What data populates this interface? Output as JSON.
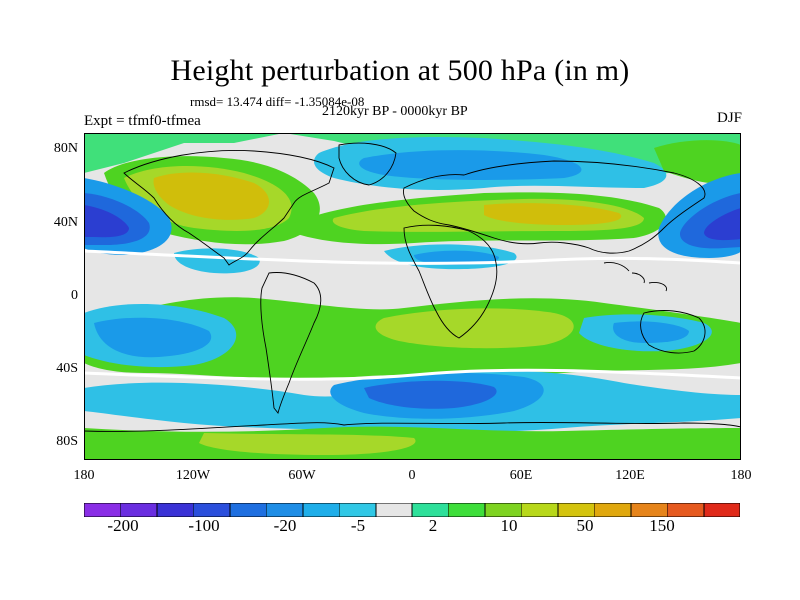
{
  "title": "Height perturbation at 500 hPa (in m)",
  "stats_line": "rmsd= 13.474 diff= -1.35084e-08",
  "experiment_line": "Expt = tfmf0-tfmea",
  "period_line": "2120kyr BP - 0000kyr BP",
  "season": "DJF",
  "map": {
    "y_ticks": [
      "80N",
      "40N",
      "0",
      "40S",
      "80S"
    ],
    "x_ticks": [
      "180",
      "120W",
      "60W",
      "0",
      "60E",
      "120E",
      "180"
    ],
    "fill_colors": {
      "neutral": "#e6e6e6",
      "pos_weak": "#40e07a",
      "pos_mid": "#4ed321",
      "pos_strong": "#a6d829",
      "pos_high": "#d0be0b",
      "neg_weak": "#2fc0e6",
      "neg_mid": "#1a9ae9",
      "neg_strong": "#1f68dc",
      "neg_high": "#2b3ed1"
    }
  },
  "legend": {
    "labels": [
      "-200",
      "-100",
      "-20",
      "-5",
      "2",
      "10",
      "50",
      "150"
    ],
    "colors": [
      "#8a2ee6",
      "#6a2ee0",
      "#3a32d6",
      "#2b4fdc",
      "#1f6fe0",
      "#1f8ee6",
      "#1faee9",
      "#30c8e6",
      "#e6e6e6",
      "#2ee09a",
      "#3ede3a",
      "#7ed321",
      "#b8d81a",
      "#d4c40e",
      "#e0a80e",
      "#e6841a",
      "#e65a1f",
      "#e02a1a"
    ]
  }
}
